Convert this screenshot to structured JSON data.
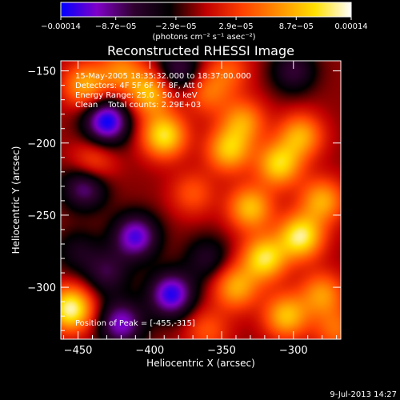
{
  "chart_data": {
    "type": "heatmap",
    "title": "Reconstructed RHESSI Image",
    "xlabel": "Heliocentric X (arcsec)",
    "ylabel": "Heliocentric Y (arcsec)",
    "xlim": [
      -462,
      -267
    ],
    "ylim": [
      -336,
      -143
    ],
    "x_ticks": [
      -450,
      -400,
      -350,
      -300
    ],
    "x_tick_labels": [
      "−450",
      "−400",
      "−350",
      "−300"
    ],
    "y_ticks": [
      -300,
      -250,
      -200,
      -150
    ],
    "y_tick_labels": [
      "−300",
      "−250",
      "−200",
      "−150"
    ],
    "colorbar": {
      "range": [
        -0.00014,
        0.00014
      ],
      "ticks": [
        -0.00014,
        -8.7e-05,
        -2.9e-05,
        2.9e-05,
        8.7e-05,
        0.00014
      ],
      "tick_labels": [
        "−0.00014",
        "−8.7e−05",
        "−2.9e−05",
        "2.9e−05",
        "8.7e−05",
        "0.00014"
      ],
      "unit_label": "(photons cm⁻² s⁻¹ asec⁻²)",
      "colors": [
        "#0000ff",
        "#8000c8",
        "#300030",
        "#000000",
        "#c00000",
        "#ff4000",
        "#ff9000",
        "#ffe000",
        "#ffffff"
      ]
    },
    "annotations": {
      "time_range": "15-May-2005 18:35:32.000 to 18:37:00.000",
      "detectors": "Detectors: 4F 5F 6F 7F 8F, Att 0",
      "energy": "Energy Range: 25.0 - 50.0 keV",
      "clean": "Clean    Total counts: 2.29E+03",
      "peak": "Position of Peak = [-455,-315]"
    },
    "peak_position": [
      -455,
      -315
    ],
    "features": [
      {
        "x": -455,
        "y": -315,
        "value": 0.00014
      },
      {
        "x": -445,
        "y": -160,
        "value": 9e-05
      },
      {
        "x": -420,
        "y": -150,
        "value": 7e-05
      },
      {
        "x": -400,
        "y": -165,
        "value": 0.0001
      },
      {
        "x": -390,
        "y": -195,
        "value": 0.00012
      },
      {
        "x": -345,
        "y": -205,
        "value": 0.0001
      },
      {
        "x": -335,
        "y": -185,
        "value": 8e-05
      },
      {
        "x": -310,
        "y": -215,
        "value": 0.00011
      },
      {
        "x": -295,
        "y": -195,
        "value": 9e-05
      },
      {
        "x": -330,
        "y": -245,
        "value": 0.0001
      },
      {
        "x": -295,
        "y": -265,
        "value": 0.00013
      },
      {
        "x": -280,
        "y": -240,
        "value": 9e-05
      },
      {
        "x": -320,
        "y": -280,
        "value": 0.00012
      },
      {
        "x": -340,
        "y": -300,
        "value": 9e-05
      },
      {
        "x": -305,
        "y": -320,
        "value": 0.0001
      },
      {
        "x": -280,
        "y": -305,
        "value": 8e-05
      },
      {
        "x": -440,
        "y": -215,
        "value": 6e-05
      },
      {
        "x": -360,
        "y": -165,
        "value": 6e-05
      },
      {
        "x": -370,
        "y": -235,
        "value": 5e-05
      },
      {
        "x": -430,
        "y": -185,
        "value": -0.00013
      },
      {
        "x": -445,
        "y": -230,
        "value": -9e-05
      },
      {
        "x": -410,
        "y": -265,
        "value": -0.00011
      },
      {
        "x": -385,
        "y": -305,
        "value": -0.00012
      },
      {
        "x": -420,
        "y": -325,
        "value": -0.0001
      },
      {
        "x": -360,
        "y": -280,
        "value": -5e-05
      },
      {
        "x": -430,
        "y": -290,
        "value": -6e-05
      },
      {
        "x": -380,
        "y": -150,
        "value": -7e-05
      },
      {
        "x": -300,
        "y": -150,
        "value": -6e-05
      },
      {
        "x": -345,
        "y": -150,
        "value": 5e-05
      },
      {
        "x": -450,
        "y": -275,
        "value": -4e-05
      },
      {
        "x": -270,
        "y": -330,
        "value": 6e-05
      },
      {
        "x": -360,
        "y": -330,
        "value": 5e-05
      }
    ]
  },
  "timestamp": "9-Jul-2013 14:27"
}
